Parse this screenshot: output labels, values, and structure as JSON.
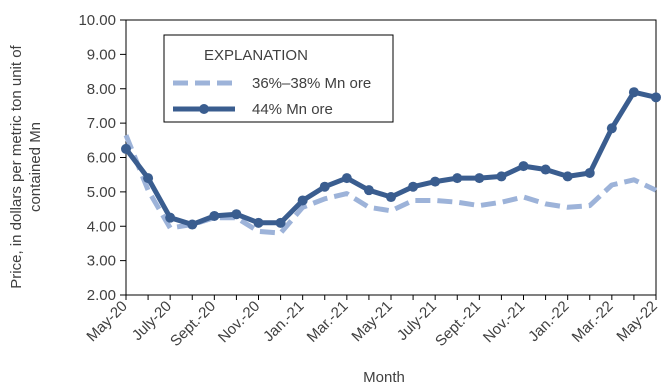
{
  "chart_data": {
    "type": "line",
    "xlabel": "Month",
    "ylabel_lines": [
      "Price, in dollars per metric ton unit of",
      "contained Mn"
    ],
    "ylim": [
      2.0,
      10.0
    ],
    "y_ticks": [
      "2.00",
      "3.00",
      "4.00",
      "5.00",
      "6.00",
      "7.00",
      "8.00",
      "9.00",
      "10.00"
    ],
    "x": [
      "May-20",
      "Jun-20",
      "Jul-20",
      "Aug-20",
      "Sep-20",
      "Oct-20",
      "Nov-20",
      "Dec-20",
      "Jan-21",
      "Feb-21",
      "Mar-21",
      "Apr-21",
      "May-21",
      "Jun-21",
      "Jul-21",
      "Aug-21",
      "Sep-21",
      "Oct-21",
      "Nov-21",
      "Dec-21",
      "Jan-22",
      "Feb-22",
      "Mar-22",
      "Apr-22",
      "May-22"
    ],
    "x_tick_labels": [
      "May-20",
      "July-20",
      "Sept.-20",
      "Nov.-20",
      "Jan.-21",
      "Mar.-21",
      "May-21",
      "July-21",
      "Sept.-21",
      "Nov.-21",
      "Jan.-22",
      "Mar.-22",
      "May-22"
    ],
    "legend_title": "EXPLANATION",
    "legend_placement": "top-left",
    "grid": false,
    "series": [
      {
        "name": "36%–38% Mn ore",
        "style": "dashed",
        "color": "#9db3d9",
        "values": [
          6.65,
          5.05,
          3.95,
          4.05,
          4.25,
          4.25,
          3.85,
          3.8,
          4.55,
          4.8,
          4.95,
          4.55,
          4.45,
          4.75,
          4.75,
          4.7,
          4.6,
          4.7,
          4.85,
          4.65,
          4.55,
          4.6,
          5.2,
          5.35,
          5.05
        ]
      },
      {
        "name": "44% Mn ore",
        "style": "solid-markers",
        "color": "#3a5d8f",
        "values": [
          6.25,
          5.4,
          4.25,
          4.05,
          4.3,
          4.35,
          4.1,
          4.1,
          4.75,
          5.15,
          5.4,
          5.05,
          4.85,
          5.15,
          5.3,
          5.4,
          5.4,
          5.45,
          5.75,
          5.65,
          5.45,
          5.55,
          6.85,
          7.9,
          7.75
        ]
      }
    ]
  }
}
